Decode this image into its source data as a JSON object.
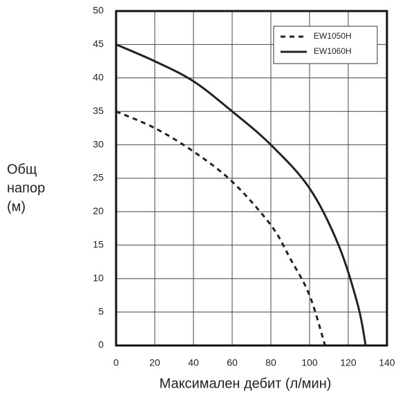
{
  "chart_data": {
    "type": "line",
    "xlabel": "Максимален дебит (л/мин)",
    "ylabel": [
      "Общ",
      "напор",
      "(м)"
    ],
    "xlim": [
      0,
      140
    ],
    "xticks": [
      0,
      20,
      40,
      60,
      80,
      100,
      120,
      140
    ],
    "ylim": [
      0,
      50
    ],
    "yticks": [
      0,
      5,
      10,
      15,
      20,
      25,
      30,
      35,
      40,
      45,
      50
    ],
    "grid": true,
    "legend": "upper right",
    "series": [
      {
        "name": "EW1050H",
        "color": "#222222",
        "style": "dashed",
        "x": [
          0,
          20,
          40,
          60,
          80,
          90,
          100,
          108
        ],
        "values": [
          35,
          32.5,
          29,
          24.5,
          18,
          13,
          7.5,
          0
        ]
      },
      {
        "name": "EW1060H",
        "color": "#222222",
        "style": "solid",
        "x": [
          0,
          20,
          40,
          60,
          80,
          100,
          115,
          125,
          129
        ],
        "values": [
          45,
          42.5,
          39.5,
          35,
          30,
          23.5,
          15,
          6,
          0
        ]
      }
    ]
  }
}
